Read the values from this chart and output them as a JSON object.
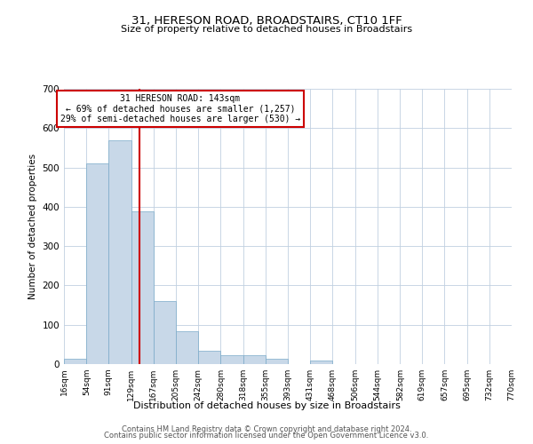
{
  "title": "31, HERESON ROAD, BROADSTAIRS, CT10 1FF",
  "subtitle": "Size of property relative to detached houses in Broadstairs",
  "xlabel": "Distribution of detached houses by size in Broadstairs",
  "ylabel": "Number of detached properties",
  "bin_edges": [
    16,
    54,
    91,
    129,
    167,
    205,
    242,
    280,
    318,
    355,
    393,
    431,
    468,
    506,
    544,
    582,
    619,
    657,
    695,
    732,
    770
  ],
  "bin_labels": [
    "16sqm",
    "54sqm",
    "91sqm",
    "129sqm",
    "167sqm",
    "205sqm",
    "242sqm",
    "280sqm",
    "318sqm",
    "355sqm",
    "393sqm",
    "431sqm",
    "468sqm",
    "506sqm",
    "544sqm",
    "582sqm",
    "619sqm",
    "657sqm",
    "695sqm",
    "732sqm",
    "770sqm"
  ],
  "bar_heights": [
    13,
    511,
    570,
    388,
    160,
    83,
    33,
    22,
    22,
    14,
    0,
    10,
    0,
    0,
    0,
    0,
    0,
    0,
    0,
    0
  ],
  "bar_color": "#c8d8e8",
  "bar_edge_color": "#7aaac8",
  "vline_x": 143,
  "vline_color": "#cc0000",
  "ylim": [
    0,
    700
  ],
  "yticks": [
    0,
    100,
    200,
    300,
    400,
    500,
    600,
    700
  ],
  "annotation_box_text": "31 HERESON ROAD: 143sqm\n← 69% of detached houses are smaller (1,257)\n29% of semi-detached houses are larger (530) →",
  "annotation_box_color": "#cc0000",
  "footer_line1": "Contains HM Land Registry data © Crown copyright and database right 2024.",
  "footer_line2": "Contains public sector information licensed under the Open Government Licence v3.0.",
  "bg_color": "#ffffff",
  "grid_color": "#c0d0e0"
}
